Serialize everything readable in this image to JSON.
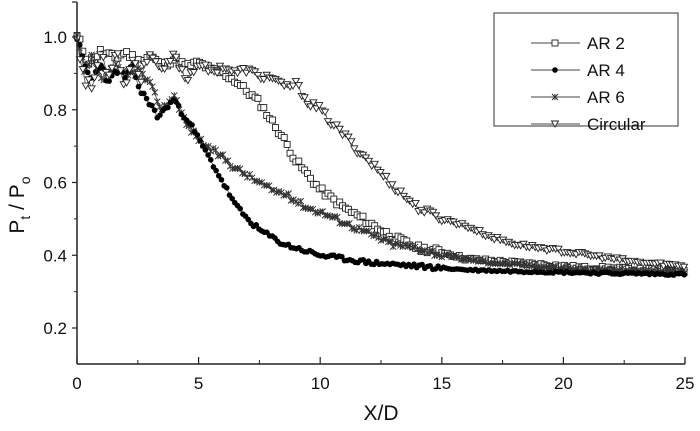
{
  "chart_data": {
    "type": "line",
    "title": "",
    "xlabel": "X/D",
    "ylabel": "P_t / P_o",
    "ylabel_parts": {
      "p1": "P",
      "sub1": "t",
      "sep": " / ",
      "p2": "P",
      "sub2": "o"
    },
    "xlim": [
      0,
      25
    ],
    "ylim": [
      0.1,
      1.1
    ],
    "x_ticks": [
      0,
      5,
      10,
      15,
      20,
      25
    ],
    "x_tick_labels": [
      "0",
      "5",
      "10",
      "15",
      "20",
      "25"
    ],
    "y_ticks": [
      0.2,
      0.4,
      0.6,
      0.8,
      1.0
    ],
    "y_tick_labels": [
      "0.2",
      "0.4",
      "0.6",
      "0.8",
      "1.0"
    ],
    "grid": false,
    "legend_position": "upper right",
    "series": [
      {
        "name": "AR 2",
        "marker": "open-square",
        "x": [
          0,
          0.5,
          1,
          1.5,
          2,
          2.5,
          3,
          3.5,
          4,
          4.5,
          5,
          5.5,
          6,
          6.5,
          7,
          7.5,
          8,
          8.5,
          9,
          9.5,
          10,
          11,
          12,
          13,
          14,
          15,
          16,
          17,
          18,
          19,
          20,
          21,
          22,
          23,
          24,
          25
        ],
        "values": [
          1.0,
          0.93,
          0.96,
          0.94,
          0.96,
          0.93,
          0.95,
          0.92,
          0.94,
          0.92,
          0.93,
          0.91,
          0.9,
          0.88,
          0.85,
          0.82,
          0.77,
          0.72,
          0.66,
          0.62,
          0.58,
          0.53,
          0.49,
          0.45,
          0.42,
          0.41,
          0.39,
          0.385,
          0.38,
          0.375,
          0.37,
          0.365,
          0.365,
          0.36,
          0.36,
          0.36
        ]
      },
      {
        "name": "AR 4",
        "marker": "filled-circle",
        "x": [
          0,
          0.3,
          0.6,
          1,
          1.3,
          1.6,
          2,
          2.3,
          2.6,
          3,
          3.3,
          3.6,
          4,
          4.3,
          4.6,
          5,
          5.5,
          6,
          6.5,
          7,
          7.5,
          8,
          8.5,
          9,
          10,
          11,
          12,
          13,
          14,
          15,
          16,
          17,
          18,
          19,
          20,
          21,
          22,
          23,
          24,
          25
        ],
        "values": [
          1.0,
          0.92,
          0.88,
          0.93,
          0.87,
          0.91,
          0.89,
          0.92,
          0.85,
          0.82,
          0.78,
          0.8,
          0.83,
          0.79,
          0.77,
          0.72,
          0.66,
          0.6,
          0.54,
          0.5,
          0.47,
          0.45,
          0.43,
          0.42,
          0.4,
          0.39,
          0.38,
          0.375,
          0.37,
          0.365,
          0.36,
          0.358,
          0.356,
          0.355,
          0.353,
          0.352,
          0.35,
          0.35,
          0.348,
          0.348
        ]
      },
      {
        "name": "AR 6",
        "marker": "asterisk",
        "x": [
          0,
          0.3,
          0.6,
          1,
          1.5,
          2,
          2.5,
          3,
          3.5,
          4,
          4.5,
          5,
          5.5,
          6,
          6.5,
          7,
          7.5,
          8,
          8.5,
          9,
          9.5,
          10,
          11,
          12,
          13,
          14,
          15,
          16,
          17,
          18,
          19,
          20,
          21,
          22,
          23,
          24,
          25
        ],
        "values": [
          1.0,
          0.9,
          0.94,
          0.88,
          0.92,
          0.89,
          0.91,
          0.87,
          0.8,
          0.84,
          0.76,
          0.72,
          0.69,
          0.67,
          0.64,
          0.62,
          0.6,
          0.58,
          0.57,
          0.55,
          0.53,
          0.52,
          0.49,
          0.46,
          0.43,
          0.42,
          0.4,
          0.39,
          0.38,
          0.375,
          0.37,
          0.365,
          0.36,
          0.36,
          0.358,
          0.356,
          0.355
        ]
      },
      {
        "name": "Circular",
        "marker": "open-triangle-down",
        "x": [
          0,
          0.3,
          0.6,
          1,
          1.3,
          1.6,
          2,
          2.3,
          2.6,
          3,
          3.5,
          4,
          4.5,
          5,
          5.5,
          6,
          6.5,
          7,
          7.5,
          8,
          8.5,
          9,
          9.5,
          10,
          10.5,
          11,
          11.5,
          12,
          13,
          14,
          15,
          16,
          17,
          18,
          19,
          20,
          21,
          22,
          23,
          24,
          25
        ],
        "values": [
          1.0,
          0.88,
          0.86,
          0.96,
          0.89,
          0.97,
          0.86,
          0.95,
          0.88,
          0.96,
          0.9,
          0.95,
          0.88,
          0.93,
          0.9,
          0.92,
          0.9,
          0.91,
          0.89,
          0.89,
          0.86,
          0.87,
          0.82,
          0.8,
          0.76,
          0.73,
          0.69,
          0.66,
          0.59,
          0.53,
          0.5,
          0.48,
          0.45,
          0.43,
          0.42,
          0.41,
          0.4,
          0.39,
          0.38,
          0.375,
          0.37
        ]
      }
    ]
  }
}
